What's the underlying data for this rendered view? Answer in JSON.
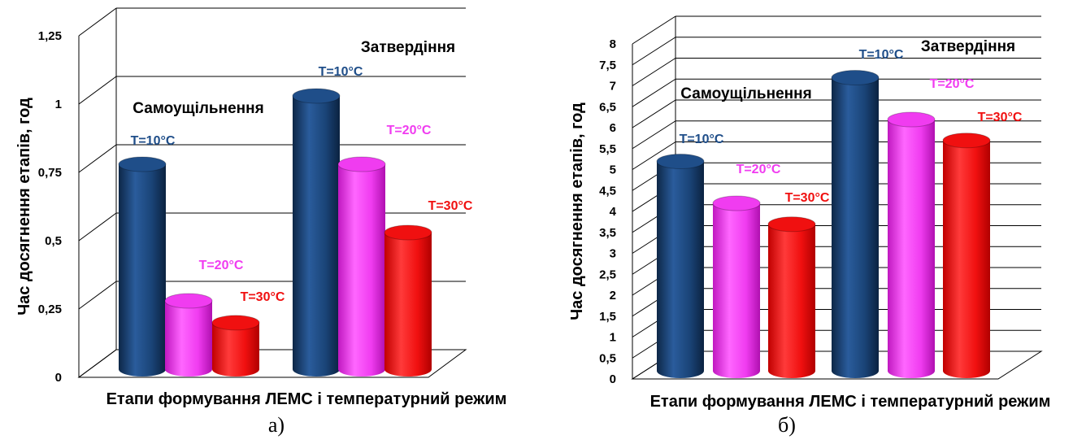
{
  "colors": {
    "T10": "#1F4E89",
    "T20": "#F03CF0",
    "T30": "#F01010"
  },
  "chart_data": [
    {
      "type": "bar",
      "panel_label": "а)",
      "ylabel": "Час досягнення етапів, год",
      "xlabel": "Етапи формування ЛЕМС  і температурний режим",
      "ylim": [
        0,
        1.25
      ],
      "y_ticks": [
        "0",
        "0,25",
        "0,5",
        "0,75",
        "1",
        "1,25"
      ],
      "grid": true,
      "categories": [
        "Самоущільнення",
        "Затвердіння"
      ],
      "series": [
        {
          "name": "T=10°C",
          "label": "T=10°C",
          "values": [
            0.75,
            1.0
          ]
        },
        {
          "name": "T=20°C",
          "label": "T=20°C",
          "values": [
            0.25,
            0.75
          ]
        },
        {
          "name": "T=30°C",
          "label": "T=30°C",
          "values": [
            0.17,
            0.5
          ]
        }
      ]
    },
    {
      "type": "bar",
      "panel_label": "б)",
      "ylabel": "Час досягнення етапів, год",
      "xlabel": "Етапи формування ЛЕМС і температурний режим",
      "ylim": [
        0,
        8
      ],
      "y_ticks": [
        "0",
        "0,5",
        "1",
        "1,5",
        "2",
        "2,5",
        "3",
        "3,5",
        "4",
        "4,5",
        "5",
        "5,5",
        "6",
        "6,5",
        "7",
        "7,5",
        "8"
      ],
      "grid": true,
      "categories": [
        "Самоущільнення",
        "Затвердіння"
      ],
      "series": [
        {
          "name": "T=10°C",
          "label": "T=10°C",
          "values": [
            5.0,
            7.0
          ]
        },
        {
          "name": "T=20°C",
          "label": "T=20°C",
          "values": [
            4.0,
            6.0
          ]
        },
        {
          "name": "T=30°C",
          "label": "T=30°C",
          "values": [
            3.5,
            5.5
          ]
        }
      ]
    }
  ]
}
